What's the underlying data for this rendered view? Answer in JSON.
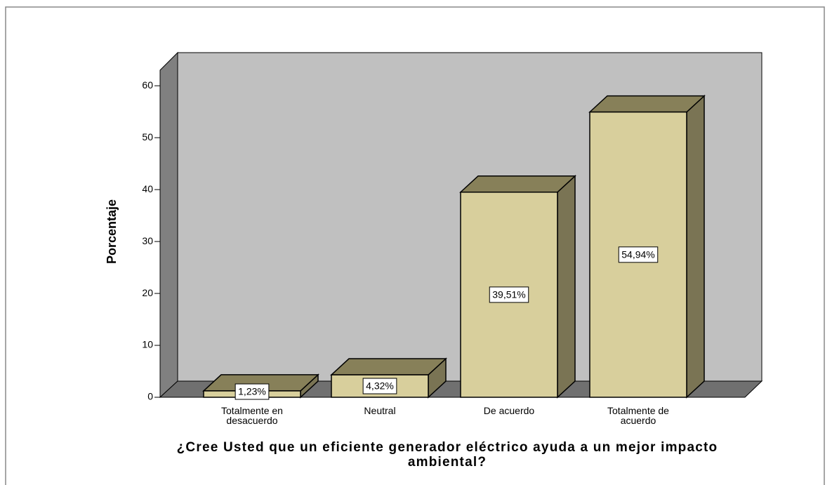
{
  "chart_data": {
    "type": "bar3d",
    "x_label": "¿Cree Usted que un eficiente generador eléctrico ayuda a un mejor impacto ambiental?",
    "y_label": "Porcentaje",
    "categories": [
      "Totalmente en desacuerdo",
      "Neutral",
      "De acuerdo",
      "Totalmente de acuerdo"
    ],
    "values": [
      1.23,
      4.32,
      39.51,
      54.94
    ],
    "value_labels": [
      "1,23%",
      "4,32%",
      "39,51%",
      "54,94%"
    ],
    "color": "#d8cf9c",
    "ylim": [
      0,
      63
    ],
    "yticks": [
      0,
      10,
      20,
      30,
      40,
      50,
      60
    ]
  }
}
